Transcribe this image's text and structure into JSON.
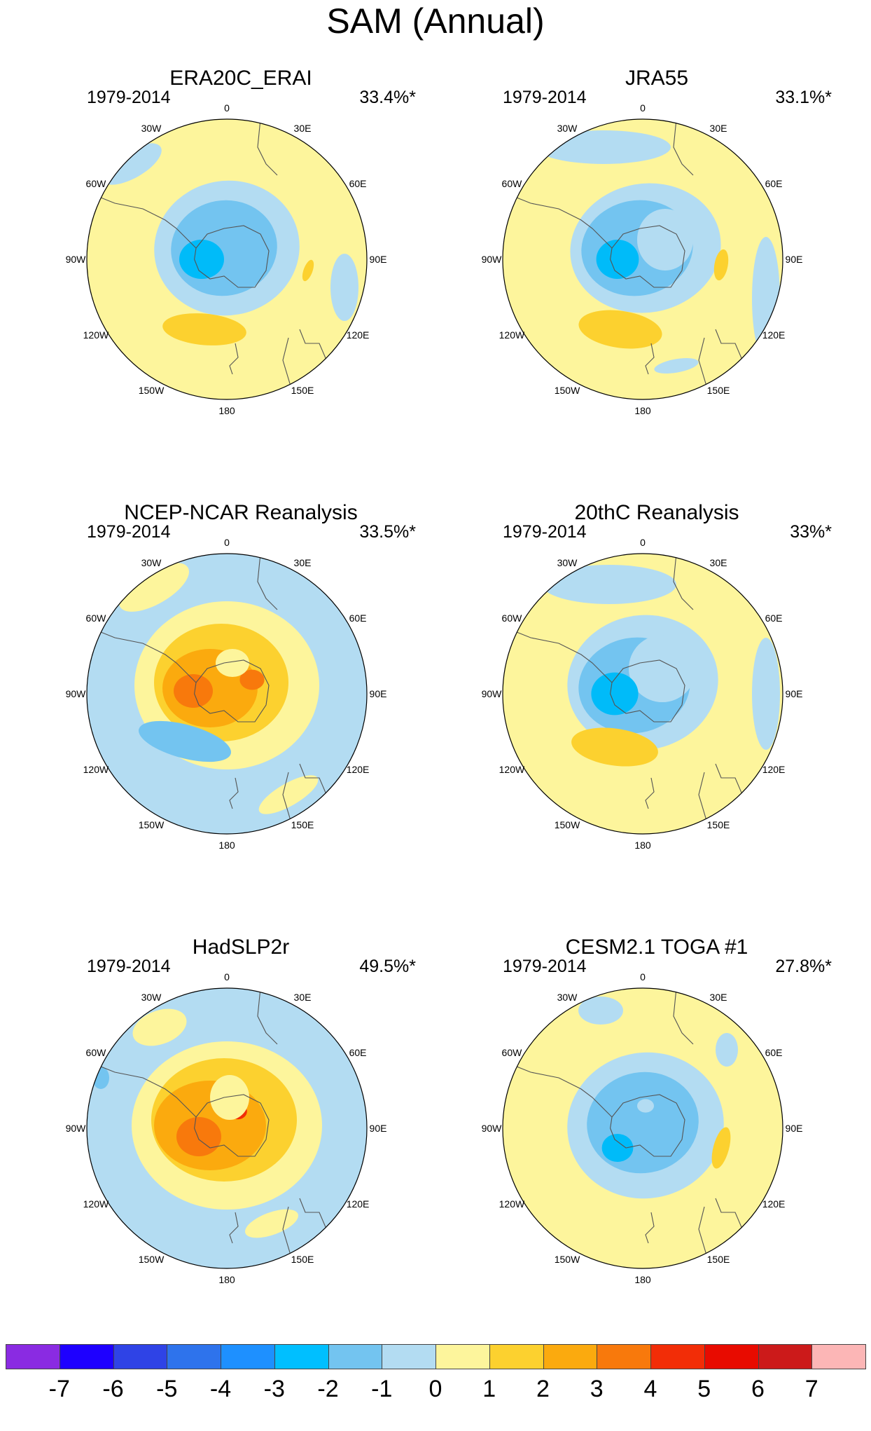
{
  "figure": {
    "title": "SAM (Annual)"
  },
  "palette": {
    "neg1": "#b3dcf2",
    "neg2": "#73c4f0",
    "neg3": "#00bbf9",
    "zero": "#fdf59c",
    "pos1": "#fcd12f",
    "pos2": "#fbaa0e",
    "pos3": "#f8790c",
    "pos4": "#f22d07",
    "pos5": "#e80b00",
    "land": "#555555"
  },
  "panels": [
    {
      "title": "ERA20C_ERAI",
      "period": "1979-2014",
      "variance": "33.4%*"
    },
    {
      "title": "JRA55",
      "period": "1979-2014",
      "variance": "33.1%*"
    },
    {
      "title": "NCEP-NCAR Reanalysis",
      "period": "1979-2014",
      "variance": "33.5%*"
    },
    {
      "title": "20thC Reanalysis",
      "period": "1979-2014",
      "variance": "33%*"
    },
    {
      "title": "HadSLP2r",
      "period": "1979-2014",
      "variance": "49.5%*"
    },
    {
      "title": "CESM2.1 TOGA #1",
      "period": "1979-2014",
      "variance": "27.8%*"
    }
  ],
  "longitude_labels": [
    "0",
    "30E",
    "60E",
    "90E",
    "120E",
    "150E",
    "180",
    "150W",
    "120W",
    "90W",
    "60W",
    "30W"
  ],
  "colorbar": {
    "colors": [
      "#8a2be2",
      "#1e00ff",
      "#2f43e6",
      "#2e73ec",
      "#1e90ff",
      "#00bfff",
      "#73c4f0",
      "#b3dcf2",
      "#fdf59c",
      "#fcd12f",
      "#fbaa0e",
      "#f8790c",
      "#f22d07",
      "#e80b00",
      "#cc1a1a",
      "#fcb6b6"
    ],
    "tick_labels": [
      "-7",
      "-6",
      "-5",
      "-4",
      "-3",
      "-2",
      "-1",
      "0",
      "1",
      "2",
      "3",
      "4",
      "5",
      "6",
      "7"
    ]
  }
}
